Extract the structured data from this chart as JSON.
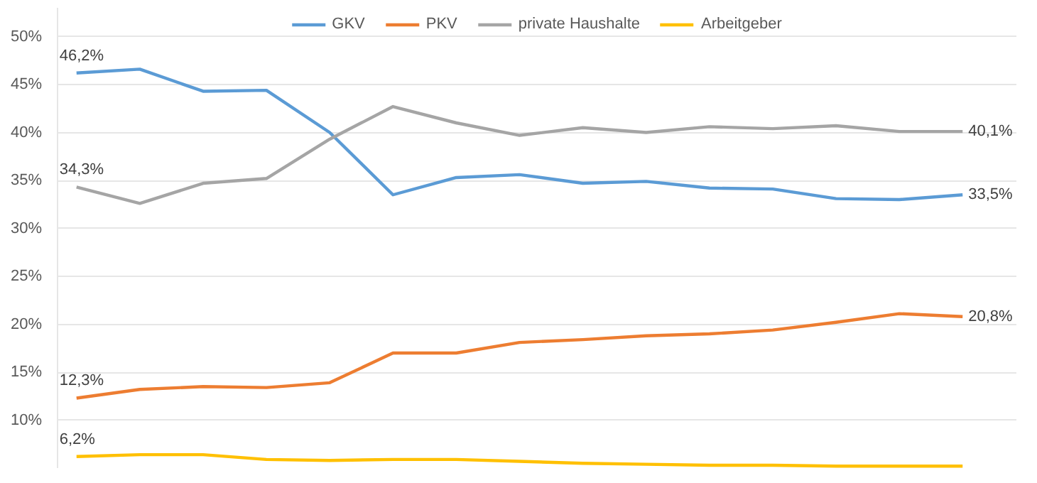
{
  "chart_data": {
    "type": "line",
    "categories": [
      null,
      null,
      null,
      null,
      null,
      null,
      null,
      null,
      null,
      null,
      null,
      null,
      null,
      null,
      null
    ],
    "series": [
      {
        "name": "GKV",
        "color": "#5b9bd5",
        "values": [
          46.2,
          46.6,
          44.3,
          44.4,
          40.0,
          33.5,
          35.3,
          35.6,
          34.7,
          34.9,
          34.2,
          34.1,
          33.1,
          33.0,
          33.5
        ],
        "value_labels": [
          "46,2%",
          null,
          null,
          null,
          null,
          null,
          null,
          null,
          null,
          null,
          null,
          null,
          null,
          null,
          "33,5%"
        ]
      },
      {
        "name": "PKV",
        "color": "#ed7d31",
        "values": [
          12.3,
          13.2,
          13.5,
          13.4,
          13.9,
          17.0,
          17.0,
          18.1,
          18.4,
          18.8,
          19.0,
          19.4,
          20.2,
          21.1,
          20.8
        ],
        "value_labels": [
          "12,3%",
          null,
          null,
          null,
          null,
          null,
          null,
          null,
          null,
          null,
          null,
          null,
          null,
          null,
          "20,8%"
        ]
      },
      {
        "name": "private Haushalte",
        "color": "#a5a5a5",
        "values": [
          34.3,
          32.6,
          34.7,
          35.2,
          39.3,
          42.7,
          41.0,
          39.7,
          40.5,
          40.0,
          40.6,
          40.4,
          40.7,
          40.1,
          40.1
        ],
        "value_labels": [
          "34,3%",
          null,
          null,
          null,
          null,
          null,
          null,
          null,
          null,
          null,
          null,
          null,
          null,
          null,
          "40,1%"
        ]
      },
      {
        "name": "Arbeitgeber",
        "color": "#ffc000",
        "values": [
          6.2,
          6.4,
          6.4,
          5.9,
          5.8,
          5.9,
          5.9,
          5.7,
          5.5,
          5.4,
          5.3,
          5.3,
          5.2,
          5.2,
          5.2
        ],
        "value_labels": [
          "6,2%",
          null,
          null,
          null,
          null,
          null,
          null,
          null,
          null,
          null,
          null,
          null,
          null,
          null,
          null
        ]
      }
    ],
    "ylim": [
      5,
      53
    ],
    "yticks": [
      {
        "value": 10,
        "label": "10%"
      },
      {
        "value": 15,
        "label": "15%"
      },
      {
        "value": 20,
        "label": "20%"
      },
      {
        "value": 25,
        "label": "25%"
      },
      {
        "value": 30,
        "label": "30%"
      },
      {
        "value": 35,
        "label": "35%"
      },
      {
        "value": 40,
        "label": "40%"
      },
      {
        "value": 45,
        "label": "45%"
      },
      {
        "value": 50,
        "label": "50%"
      }
    ],
    "grid": "y",
    "legend": "top",
    "tick_labels": "y",
    "marker": "none",
    "line_style": "solid"
  }
}
